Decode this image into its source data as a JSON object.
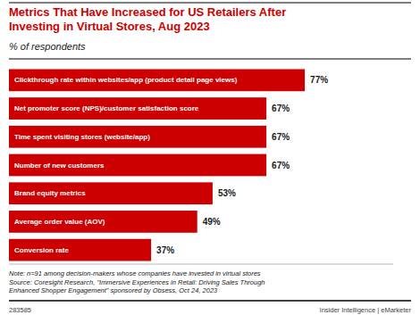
{
  "chart_data": {
    "type": "bar",
    "orientation": "horizontal",
    "title": "Metrics That Have Increased for US Retailers After\nInvesting in Virtual Stores, Aug 2023",
    "subtitle": "% of respondents",
    "categories": [
      "Clickthrough rate within websites/app (product detail page views)",
      "Net promoter score (NPS)/customer satisfaction score",
      "Time spent visiting stores (website/app)",
      "Number of new customers",
      "Brand equity metrics",
      "Average order value (AOV)",
      "Conversion rate"
    ],
    "values": [
      77,
      67,
      67,
      67,
      53,
      49,
      37
    ],
    "value_labels": [
      "77%",
      "67%",
      "67%",
      "67%",
      "53%",
      "49%",
      "37%"
    ],
    "data_labels": true,
    "color": "#cc0000",
    "xlim": [
      0,
      100
    ],
    "tick_labels": false,
    "grid": false,
    "annotations": [
      "Note: n=91 among decision-makers whose companies have invested in virtual stores\nSource: Coresight Research, \"Immersive Experiences in Retail: Driving Sales Through\nEnhanced Shopper Engagement\" sponsored by Obsess, Oct 24, 2023",
      "283585",
      "Insider Intelligence | eMarketer"
    ]
  }
}
